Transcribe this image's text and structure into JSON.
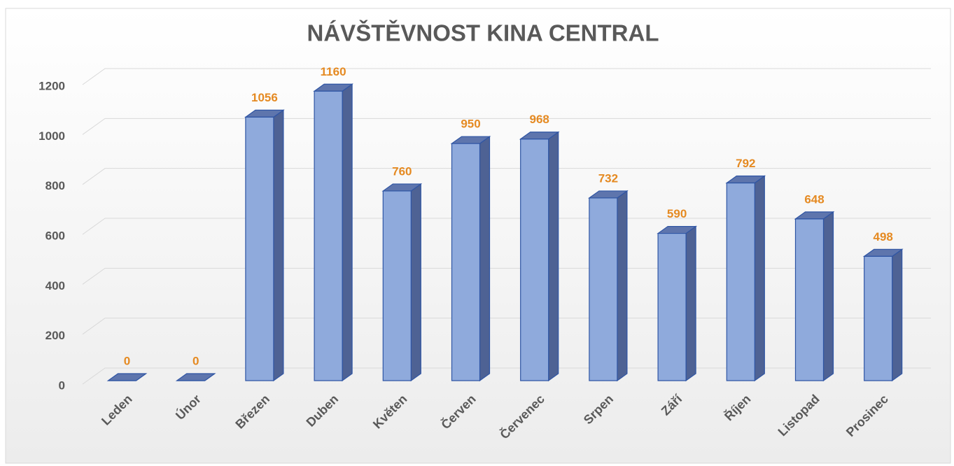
{
  "chart_data": {
    "type": "bar3d",
    "title": "NÁVŠTĚVNOST KINA CENTRAL",
    "categories": [
      "Leden",
      "Únor",
      "Březen",
      "Duben",
      "Květen",
      "Červen",
      "Červenec",
      "Srpen",
      "Září",
      "Říjen",
      "Listopad",
      "Prosinec"
    ],
    "values": [
      0,
      0,
      1056,
      1160,
      760,
      950,
      968,
      732,
      590,
      792,
      648,
      498
    ],
    "color": "#8faadc",
    "label_color": "#e58a22",
    "ylim": [
      0,
      1200
    ],
    "yticks": [
      0,
      200,
      400,
      600,
      800,
      1000,
      1200
    ],
    "grid": true
  }
}
